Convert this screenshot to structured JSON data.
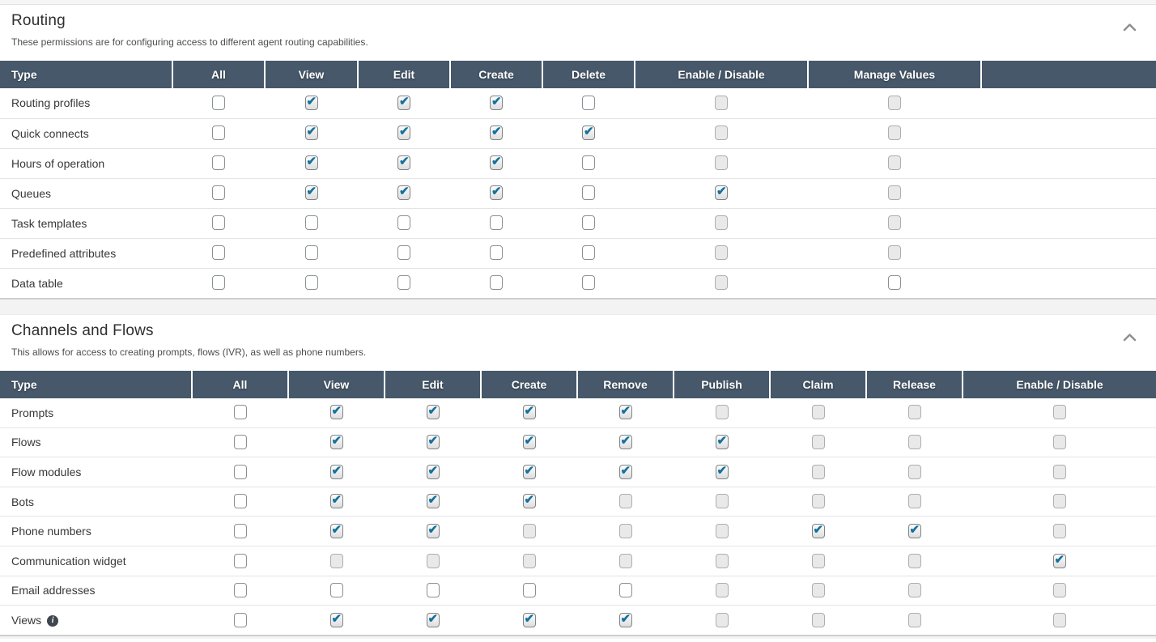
{
  "page": {
    "colors": {
      "table_header_bg": "#46586a",
      "table_header_text": "#ffffff",
      "checkbox_check": "#15719c",
      "checkbox_disabled_bg": "#e9e9e9",
      "section_divider_bg": "#f3f3f3"
    },
    "sections": [
      {
        "title": "Routing",
        "description": "These permissions are for configuring access to different agent routing capabilities.",
        "collapse_icon": "chevron-up-icon",
        "columns": [
          "Type",
          "All",
          "View",
          "Edit",
          "Create",
          "Delete",
          "Enable / Disable",
          "Manage Values",
          ""
        ],
        "rows": [
          {
            "label": "Routing profiles",
            "states": [
              "unchecked",
              "checked",
              "checked",
              "checked",
              "unchecked",
              "disabled",
              "disabled"
            ]
          },
          {
            "label": "Quick connects",
            "states": [
              "unchecked",
              "checked",
              "checked",
              "checked",
              "checked",
              "disabled",
              "disabled"
            ]
          },
          {
            "label": "Hours of operation",
            "states": [
              "unchecked",
              "checked",
              "checked",
              "checked",
              "unchecked",
              "disabled",
              "disabled"
            ]
          },
          {
            "label": "Queues",
            "states": [
              "unchecked",
              "checked",
              "checked",
              "checked",
              "unchecked",
              "checked",
              "disabled"
            ]
          },
          {
            "label": "Task templates",
            "states": [
              "unchecked",
              "unchecked",
              "unchecked",
              "unchecked",
              "unchecked",
              "disabled",
              "disabled"
            ]
          },
          {
            "label": "Predefined attributes",
            "states": [
              "unchecked",
              "unchecked",
              "unchecked",
              "unchecked",
              "unchecked",
              "disabled",
              "disabled"
            ]
          },
          {
            "label": "Data table",
            "states": [
              "unchecked",
              "unchecked",
              "unchecked",
              "unchecked",
              "unchecked",
              "disabled",
              "unchecked"
            ]
          }
        ]
      },
      {
        "title": "Channels and Flows",
        "description": "This allows for access to creating prompts, flows (IVR), as well as phone numbers.",
        "collapse_icon": "chevron-up-icon",
        "columns": [
          "Type",
          "All",
          "View",
          "Edit",
          "Create",
          "Remove",
          "Publish",
          "Claim",
          "Release",
          "Enable / Disable"
        ],
        "rows": [
          {
            "label": "Prompts",
            "states": [
              "unchecked",
              "checked",
              "checked",
              "checked",
              "checked",
              "disabled",
              "disabled",
              "disabled",
              "disabled"
            ]
          },
          {
            "label": "Flows",
            "states": [
              "unchecked",
              "checked",
              "checked",
              "checked",
              "checked",
              "checked",
              "disabled",
              "disabled",
              "disabled"
            ]
          },
          {
            "label": "Flow modules",
            "states": [
              "unchecked",
              "checked",
              "checked",
              "checked",
              "checked",
              "checked",
              "disabled",
              "disabled",
              "disabled"
            ]
          },
          {
            "label": "Bots",
            "states": [
              "unchecked",
              "checked",
              "checked",
              "checked",
              "disabled",
              "disabled",
              "disabled",
              "disabled",
              "disabled"
            ]
          },
          {
            "label": "Phone numbers",
            "states": [
              "unchecked",
              "checked",
              "checked",
              "disabled",
              "disabled",
              "disabled",
              "checked",
              "checked",
              "disabled"
            ]
          },
          {
            "label": "Communication widget",
            "states": [
              "unchecked",
              "disabled",
              "disabled",
              "disabled",
              "disabled",
              "disabled",
              "disabled",
              "disabled",
              "checked"
            ]
          },
          {
            "label": "Email addresses",
            "states": [
              "unchecked",
              "unchecked",
              "unchecked",
              "unchecked",
              "unchecked",
              "disabled",
              "disabled",
              "disabled",
              "disabled"
            ]
          },
          {
            "label": "Views",
            "info_icon": "info-icon",
            "states": [
              "unchecked",
              "checked",
              "checked",
              "checked",
              "checked",
              "disabled",
              "disabled",
              "disabled",
              "disabled"
            ]
          }
        ]
      }
    ]
  }
}
